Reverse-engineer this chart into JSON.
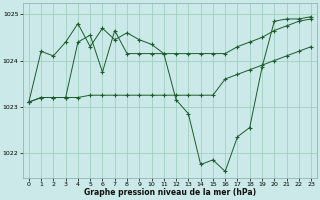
{
  "title": "Graphe pression niveau de la mer (hPa)",
  "bg_color": "#cbe9e9",
  "grid_color": "#99ccbb",
  "line_color": "#1a5c2a",
  "xlim": [
    -0.5,
    23.5
  ],
  "ylim": [
    1021.45,
    1025.25
  ],
  "yticks": [
    1022,
    1023,
    1024,
    1025
  ],
  "xticks": [
    0,
    1,
    2,
    3,
    4,
    5,
    6,
    7,
    8,
    9,
    10,
    11,
    12,
    13,
    14,
    15,
    16,
    17,
    18,
    19,
    20,
    21,
    22,
    23
  ],
  "line1_x": [
    0,
    1,
    2,
    3,
    4,
    5,
    6,
    7,
    8,
    9,
    10,
    11,
    12,
    13,
    14,
    15,
    16,
    17,
    18,
    19,
    20,
    21,
    22,
    23
  ],
  "line1_y": [
    1023.1,
    1024.2,
    1024.1,
    1024.4,
    1024.8,
    1024.3,
    1024.7,
    1024.45,
    1024.6,
    1024.45,
    1024.35,
    1024.15,
    1023.15,
    1022.85,
    1021.75,
    1021.85,
    1021.6,
    1022.35,
    1022.55,
    1023.85,
    1024.85,
    1024.9,
    1024.9,
    1024.95
  ],
  "line2_x": [
    0,
    1,
    2,
    3,
    4,
    5,
    6,
    7,
    8,
    9,
    10,
    11,
    12,
    13,
    14,
    15,
    16,
    17,
    18,
    19,
    20,
    21,
    22,
    23
  ],
  "line2_y": [
    1023.1,
    1023.2,
    1023.2,
    1023.2,
    1024.4,
    1024.55,
    1023.75,
    1024.65,
    1024.15,
    1024.15,
    1024.15,
    1024.15,
    1024.15,
    1024.15,
    1024.15,
    1024.15,
    1024.15,
    1024.3,
    1024.4,
    1024.5,
    1024.65,
    1024.75,
    1024.85,
    1024.9
  ],
  "line3_x": [
    0,
    1,
    2,
    3,
    4,
    5,
    6,
    7,
    8,
    9,
    10,
    11,
    12,
    13,
    14,
    15,
    16,
    17,
    18,
    19,
    20,
    21,
    22,
    23
  ],
  "line3_y": [
    1023.1,
    1023.2,
    1023.2,
    1023.2,
    1023.2,
    1023.25,
    1023.25,
    1023.25,
    1023.25,
    1023.25,
    1023.25,
    1023.25,
    1023.25,
    1023.25,
    1023.25,
    1023.25,
    1023.6,
    1023.7,
    1023.8,
    1023.9,
    1024.0,
    1024.1,
    1024.2,
    1024.3
  ]
}
